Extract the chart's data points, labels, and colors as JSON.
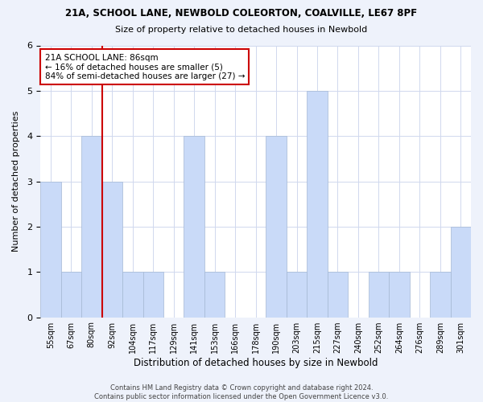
{
  "title1": "21A, SCHOOL LANE, NEWBOLD COLEORTON, COALVILLE, LE67 8PF",
  "title2": "Size of property relative to detached houses in Newbold",
  "xlabel": "Distribution of detached houses by size in Newbold",
  "ylabel": "Number of detached properties",
  "bin_labels": [
    "55sqm",
    "67sqm",
    "80sqm",
    "92sqm",
    "104sqm",
    "117sqm",
    "129sqm",
    "141sqm",
    "153sqm",
    "166sqm",
    "178sqm",
    "190sqm",
    "203sqm",
    "215sqm",
    "227sqm",
    "240sqm",
    "252sqm",
    "264sqm",
    "276sqm",
    "289sqm",
    "301sqm"
  ],
  "bar_values": [
    3,
    1,
    4,
    3,
    1,
    1,
    0,
    4,
    1,
    0,
    0,
    4,
    1,
    5,
    1,
    0,
    1,
    1,
    0,
    1,
    2
  ],
  "bar_color": "#c9daf8",
  "bar_edge_color": "#a4b8d4",
  "red_line_x": 3.0,
  "red_line_color": "#cc0000",
  "annotation_line1": "21A SCHOOL LANE: 86sqm",
  "annotation_line2": "← 16% of detached houses are smaller (5)",
  "annotation_line3": "84% of semi-detached houses are larger (27) →",
  "annotation_box_color": "#ffffff",
  "annotation_box_edge": "#cc0000",
  "ylim": [
    0,
    6
  ],
  "yticks": [
    0,
    1,
    2,
    3,
    4,
    5,
    6
  ],
  "footer1": "Contains HM Land Registry data © Crown copyright and database right 2024.",
  "footer2": "Contains public sector information licensed under the Open Government Licence v3.0.",
  "background_color": "#eef2fb",
  "plot_bg_color": "#ffffff",
  "grid_color": "#d0d8ee"
}
